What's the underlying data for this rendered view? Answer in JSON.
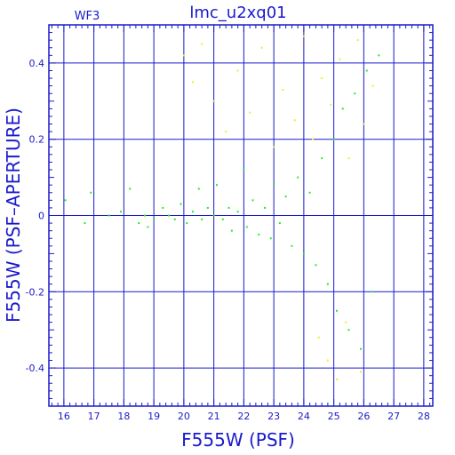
{
  "chart_data": {
    "type": "scatter",
    "title": "lmc_u2xq01",
    "chip_label": "WF3",
    "xlabel": "F555W (PSF)",
    "ylabel": "F555W (PSF–APERTURE)",
    "xlim": [
      15.5,
      28.3
    ],
    "ylim": [
      -0.5,
      0.5
    ],
    "x_ticks": [
      16,
      17,
      18,
      19,
      20,
      21,
      22,
      23,
      24,
      25,
      26,
      27,
      28
    ],
    "y_ticks": [
      -0.4,
      -0.2,
      0,
      0.2,
      0.4
    ],
    "grid": true,
    "series": [
      {
        "color": "#22ee22",
        "points": [
          [
            16.05,
            0.04
          ],
          [
            16.7,
            -0.02
          ],
          [
            16.9,
            0.06
          ],
          [
            17.5,
            0.0
          ],
          [
            17.9,
            0.01
          ],
          [
            18.2,
            0.07
          ],
          [
            18.5,
            -0.02
          ],
          [
            18.7,
            0.0
          ],
          [
            18.8,
            -0.03
          ],
          [
            19.0,
            -0.01
          ],
          [
            19.3,
            0.02
          ],
          [
            19.5,
            0.0
          ],
          [
            19.7,
            -0.01
          ],
          [
            19.9,
            0.03
          ],
          [
            20.1,
            -0.02
          ],
          [
            20.3,
            0.01
          ],
          [
            20.5,
            0.07
          ],
          [
            20.6,
            -0.01
          ],
          [
            20.8,
            0.02
          ],
          [
            21.0,
            0.0
          ],
          [
            21.1,
            0.08
          ],
          [
            21.3,
            -0.01
          ],
          [
            21.5,
            0.02
          ],
          [
            21.6,
            -0.04
          ],
          [
            21.8,
            0.01
          ],
          [
            22.0,
            0.12
          ],
          [
            22.1,
            -0.03
          ],
          [
            22.3,
            0.04
          ],
          [
            22.5,
            -0.05
          ],
          [
            22.7,
            0.02
          ],
          [
            22.9,
            -0.06
          ],
          [
            23.0,
            0.08
          ],
          [
            23.2,
            -0.02
          ],
          [
            23.4,
            0.05
          ],
          [
            23.6,
            -0.08
          ],
          [
            23.8,
            0.1
          ],
          [
            24.0,
            -0.1
          ],
          [
            24.2,
            0.06
          ],
          [
            24.4,
            -0.13
          ],
          [
            24.6,
            0.15
          ],
          [
            24.8,
            -0.18
          ],
          [
            25.0,
            0.2
          ],
          [
            25.1,
            -0.25
          ],
          [
            25.3,
            0.28
          ],
          [
            25.5,
            -0.3
          ],
          [
            25.7,
            0.32
          ],
          [
            25.9,
            -0.35
          ],
          [
            26.1,
            0.38
          ],
          [
            26.3,
            -0.2
          ],
          [
            26.5,
            0.42
          ]
        ]
      },
      {
        "color": "#eeee22",
        "points": [
          [
            20.0,
            0.42
          ],
          [
            20.3,
            0.35
          ],
          [
            20.6,
            0.45
          ],
          [
            21.0,
            0.3
          ],
          [
            21.4,
            0.22
          ],
          [
            21.8,
            0.38
          ],
          [
            22.2,
            0.27
          ],
          [
            22.6,
            0.44
          ],
          [
            23.0,
            0.18
          ],
          [
            23.3,
            0.33
          ],
          [
            23.7,
            0.25
          ],
          [
            24.0,
            0.47
          ],
          [
            24.3,
            0.2
          ],
          [
            24.6,
            0.36
          ],
          [
            24.9,
            0.29
          ],
          [
            25.2,
            0.41
          ],
          [
            25.5,
            0.15
          ],
          [
            25.8,
            0.46
          ],
          [
            26.0,
            0.24
          ],
          [
            26.3,
            0.34
          ],
          [
            24.5,
            -0.32
          ],
          [
            24.8,
            -0.38
          ],
          [
            25.1,
            -0.43
          ],
          [
            25.4,
            -0.28
          ],
          [
            25.9,
            -0.41
          ]
        ]
      }
    ]
  }
}
